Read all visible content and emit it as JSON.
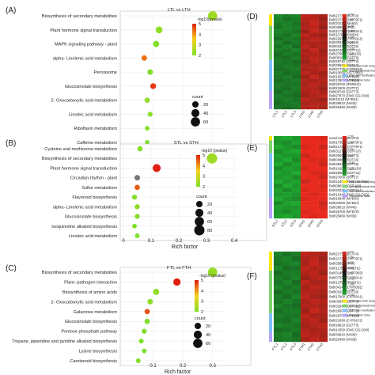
{
  "chart_data": [
    {
      "panel": "(A)",
      "type": "scatter",
      "title": "LTL vs LTH",
      "xlabel": "Rich factor",
      "xticks": [
        "0.1",
        "0.2",
        "0.3"
      ],
      "xlim": [
        0.0,
        0.33
      ],
      "legend_title": "-log10(pvalue)",
      "legend_ticks": [
        "2",
        "3",
        "4",
        "5"
      ],
      "size_title": "count",
      "size_ticks": [
        "20",
        "40",
        "60"
      ],
      "categories": [
        "Biosynthesis of secondary metabolites",
        "Plant hormone signal transduction",
        "MAPK signaling pathway - plant",
        "alpha- Linolenic acid metabolism",
        "Peroxisome",
        "Glucosinolate biosynthesis",
        "2- Oxocarboxylic acid metabolism",
        "Linoleic acid metabolism",
        "Riboflavin metabolism",
        "Caffeine metabolism"
      ],
      "points": [
        {
          "x": 0.3,
          "log10p": 2.4,
          "count": 60
        },
        {
          "x": 0.12,
          "log10p": 2.2,
          "count": 25
        },
        {
          "x": 0.11,
          "log10p": 2.0,
          "count": 18
        },
        {
          "x": 0.07,
          "log10p": 4.3,
          "count": 12
        },
        {
          "x": 0.09,
          "log10p": 2.0,
          "count": 12
        },
        {
          "x": 0.1,
          "log10p": 4.8,
          "count": 14
        },
        {
          "x": 0.08,
          "log10p": 2.2,
          "count": 10
        },
        {
          "x": 0.09,
          "log10p": 2.1,
          "count": 8
        },
        {
          "x": 0.08,
          "log10p": 2.1,
          "count": 6
        },
        {
          "x": 0.08,
          "log10p": 2.0,
          "count": 6
        }
      ]
    },
    {
      "panel": "(B)",
      "type": "scatter",
      "title": "STL vs STH",
      "xlabel": "Rich factor",
      "xticks": [
        "0",
        "0.1",
        "0.2",
        "0.3",
        "0.4"
      ],
      "xlim": [
        0.0,
        0.4
      ],
      "legend_title": "-log10 (pvalue)",
      "legend_ticks": [
        "2",
        "3",
        "4",
        "5"
      ],
      "size_title": "count",
      "size_ticks": [
        "20",
        "40",
        "60",
        "80"
      ],
      "categories": [
        "Cysteine and methionine metabolism",
        "Biosynthesis of secondary metabolites",
        "Plant hormone signal transduction",
        "Circadian rhythm - plant",
        "Sulfur metabolism",
        "Flavonoid biosynthesis",
        "alpha- Linolenic acid metabolism",
        "Glucosinolate biosynthesis",
        "Isoquinoline alkaloid biosynthesis",
        "Linoleic acid metabolism"
      ],
      "points": [
        {
          "x": 0.06,
          "log10p": 2.1,
          "count": 10
        },
        {
          "x": 0.32,
          "log10p": 2.4,
          "count": 80
        },
        {
          "x": 0.12,
          "log10p": 5.0,
          "count": 40
        },
        {
          "x": 0.05,
          "log10p": 1.0,
          "count": 12
        },
        {
          "x": 0.05,
          "log10p": 4.5,
          "count": 10
        },
        {
          "x": 0.04,
          "log10p": 2.0,
          "count": 8
        },
        {
          "x": 0.05,
          "log10p": 2.2,
          "count": 8
        },
        {
          "x": 0.05,
          "log10p": 2.1,
          "count": 8
        },
        {
          "x": 0.04,
          "log10p": 2.0,
          "count": 6
        },
        {
          "x": 0.05,
          "log10p": 2.0,
          "count": 6
        }
      ]
    },
    {
      "panel": "(C)",
      "type": "scatter",
      "title": "FTL vs FTH",
      "xlabel": "Rich factor",
      "xticks": [
        "0.1",
        "0.2",
        "0.3"
      ],
      "xlim": [
        0.0,
        0.33
      ],
      "legend_title": "-log10 (pvalue)",
      "legend_ticks": [
        "2",
        "3",
        "4",
        "5"
      ],
      "size_title": "count",
      "size_ticks": [
        "20",
        "40",
        "60"
      ],
      "categories": [
        "Biosynthesis of secondary metabolites",
        "Plant- pathogen interaction",
        "Biosynthesis of amino acids",
        "2- Oxocarboxylic acid metabolism",
        "Galactose metabolism",
        "Glucosinolate biosynthesis",
        "Pentose phosphate pathway",
        "Tropane, piperidine and pyridine alkaloid biosynthesis",
        "Lysine biosynthesis",
        "Carotenoid biosynthesis"
      ],
      "points": [
        {
          "x": 0.3,
          "log10p": 2.3,
          "count": 60
        },
        {
          "x": 0.18,
          "log10p": 5.0,
          "count": 30
        },
        {
          "x": 0.11,
          "log10p": 2.2,
          "count": 18
        },
        {
          "x": 0.09,
          "log10p": 2.2,
          "count": 12
        },
        {
          "x": 0.08,
          "log10p": 4.6,
          "count": 10
        },
        {
          "x": 0.08,
          "log10p": 2.0,
          "count": 10
        },
        {
          "x": 0.07,
          "log10p": 2.0,
          "count": 8
        },
        {
          "x": 0.06,
          "log10p": 2.0,
          "count": 7
        },
        {
          "x": 0.07,
          "log10p": 2.0,
          "count": 6
        },
        {
          "x": 0.05,
          "log10p": 2.0,
          "count": 6
        }
      ]
    },
    {
      "panel": "(D)",
      "type": "heatmap",
      "columns": [
        "LTL1",
        "LTL2",
        "LTL3",
        "LTH1",
        "LTH2",
        "LTH3"
      ],
      "rows": [
        "Bol021730 (BCAT4)",
        "Bol021736 (CYP79F1)",
        "Bol031012 (MAM2)",
        "Bol035890 (IPMI)",
        "Bol011730 (CYP83A1)",
        "Bol011760 (IPMDH)",
        "Bol022970 (CYP83A1)",
        "Bol039240 (SOT18)",
        "Bol004370 (SOT16)",
        "Bol047450 (GSTF11)",
        "Bol027080 (GSTU20)",
        "Bol008160 (GSTF9)",
        "Bol028740 (GSTT3)",
        "Bol030940 (SOT17)",
        "Bol021730 (CYP81F4)",
        "Bol010500 (UGT74B1)",
        "Bol018230 (MYB28)",
        "Bol013800 (MYB34)",
        "Bol028760 (IPMDH2)",
        "Bol021800 (GSTF2)",
        "Bol008740 (GSTT3)",
        "Bol027870 (FMO GS-OX8)",
        "Bol011110 (MYB51)",
        "Bol039910 (NH40)",
        "Bol025460 (NH39)"
      ],
      "values": [
        [
          -1.6,
          -1.4,
          -1.5,
          1.6,
          1.5,
          1.4
        ],
        [
          -1.5,
          -1.3,
          -1.4,
          1.5,
          1.6,
          1.3
        ],
        [
          -1.4,
          -1.5,
          -1.3,
          1.4,
          1.7,
          1.4
        ],
        [
          -1.3,
          -1.5,
          -1.4,
          1.5,
          1.6,
          1.2
        ],
        [
          -1.5,
          -1.4,
          -1.3,
          1.3,
          1.7,
          1.5
        ],
        [
          -1.4,
          -1.3,
          -1.5,
          1.6,
          1.4,
          1.3
        ],
        [
          -1.2,
          -1.4,
          -1.3,
          1.4,
          1.6,
          1.5
        ],
        [
          -1.5,
          -1.2,
          -1.4,
          1.5,
          1.5,
          1.4
        ],
        [
          -1.3,
          -1.5,
          -1.2,
          1.6,
          1.4,
          1.5
        ],
        [
          -1.4,
          -1.3,
          -1.5,
          1.4,
          1.7,
          1.3
        ],
        [
          -1.2,
          -1.4,
          -1.3,
          1.5,
          1.5,
          1.4
        ],
        [
          -1.3,
          -1.2,
          -1.4,
          1.4,
          1.6,
          1.5
        ],
        [
          -1.4,
          -1.3,
          -1.2,
          1.3,
          1.6,
          1.4
        ],
        [
          -1.3,
          -1.4,
          -1.3,
          1.5,
          1.4,
          1.5
        ],
        [
          -1.2,
          -1.3,
          -1.4,
          1.4,
          1.5,
          1.6
        ],
        [
          -1.4,
          -1.2,
          -1.3,
          1.6,
          1.4,
          1.3
        ],
        [
          -1.3,
          -1.4,
          -1.2,
          1.3,
          1.7,
          1.4
        ],
        [
          -1.2,
          -1.3,
          -1.4,
          1.5,
          1.4,
          1.5
        ],
        [
          -1.4,
          -1.3,
          -1.3,
          1.4,
          1.6,
          1.4
        ],
        [
          -1.3,
          -1.2,
          -1.4,
          1.5,
          1.5,
          1.3
        ],
        [
          -1.2,
          -1.4,
          -1.3,
          1.4,
          1.6,
          1.4
        ],
        [
          -1.4,
          -1.3,
          -1.2,
          1.3,
          1.5,
          1.6
        ],
        [
          -1.3,
          -1.4,
          -1.3,
          1.6,
          1.4,
          1.3
        ],
        [
          -1.2,
          -1.3,
          -1.4,
          1.4,
          1.5,
          1.5
        ],
        [
          -1.3,
          -1.2,
          -1.3,
          1.5,
          1.6,
          1.4
        ]
      ],
      "scale_ticks": [
        "2.00",
        "1.50",
        "1.00",
        "0.50",
        "0.00",
        "-0.50",
        "-1.00",
        "-1.50",
        "-2.00"
      ],
      "legend": [
        {
          "label": "Amino acid chain elongation",
          "color": "#ffe600"
        },
        {
          "label": "Core glucosinolate biosynthesis",
          "color": "#7fd36b"
        },
        {
          "label": "Side chain modification",
          "color": "#7fc1ff"
        },
        {
          "label": "Transcription factor",
          "color": "#b7a2ff"
        }
      ],
      "row_groups": [
        {
          "start": 0,
          "end": 3,
          "color": "#ffe600"
        },
        {
          "start": 3,
          "end": 12,
          "color": "#7fd36b"
        },
        {
          "start": 12,
          "end": 20,
          "color": "#7fc1ff"
        },
        {
          "start": 20,
          "end": 25,
          "color": "#b7a2ff"
        }
      ]
    },
    {
      "panel": "(E)",
      "type": "heatmap",
      "columns": [
        "STL1",
        "STL2",
        "STL3",
        "STH1",
        "STH2",
        "STH3"
      ],
      "rows": [
        "novel.4474 (BCAT3)",
        "Bol017360 (CYP79F1)",
        "Bol021736 (CYP79F1)",
        "Bol031270 (GSTF10)",
        "Bol035040 (GSTT3)",
        "Bol004860 (SOT16)",
        "Bol039240 (SOT18)",
        "Bol014100 (GSTU20)",
        "Bol025050 (GSTF11)",
        "Bol027000 (SOT17)",
        "Bol022400 (FMO GS-OX2)",
        "Bol008830 (GSTU20)",
        "Bol020330 (CYP83A1)",
        "Bol012440 (FMO GS-OX3)",
        "Bol010640 (MYB34)",
        "Bol034050 (MYB51)",
        "Bol039910 (NH40)",
        "Bol028700 (MYB76)",
        "Bol025460 (NH39)"
      ],
      "values": [
        [
          -1.4,
          -1.5,
          -1.3,
          1.5,
          1.6,
          1.4
        ],
        [
          -1.3,
          -1.2,
          -1.4,
          1.6,
          1.5,
          1.5
        ],
        [
          -1.5,
          -1.3,
          -1.2,
          1.4,
          1.7,
          1.3
        ],
        [
          -1.2,
          -1.4,
          -1.5,
          1.5,
          1.5,
          1.6
        ],
        [
          -1.4,
          -1.3,
          -1.3,
          1.3,
          1.6,
          1.5
        ],
        [
          -1.3,
          -1.5,
          -1.2,
          1.6,
          1.4,
          1.4
        ],
        [
          -1.5,
          -1.2,
          -1.4,
          1.5,
          1.5,
          1.3
        ],
        [
          -1.2,
          -1.4,
          -1.3,
          1.4,
          1.6,
          1.5
        ],
        [
          -1.4,
          -1.3,
          -1.5,
          1.5,
          1.4,
          1.4
        ],
        [
          -1.3,
          -1.4,
          -1.2,
          1.6,
          1.5,
          1.3
        ],
        [
          -1.5,
          -1.3,
          -1.4,
          1.3,
          1.6,
          1.5
        ],
        [
          -1.2,
          -1.5,
          -1.3,
          1.5,
          1.5,
          1.4
        ],
        [
          -1.4,
          -1.2,
          -1.4,
          1.4,
          1.6,
          1.5
        ],
        [
          -1.3,
          -1.4,
          -1.3,
          1.5,
          1.4,
          1.6
        ],
        [
          -1.5,
          -1.3,
          -1.2,
          1.4,
          1.5,
          1.5
        ],
        [
          -1.2,
          -1.4,
          -1.5,
          1.6,
          1.5,
          1.3
        ],
        [
          -1.4,
          -1.3,
          -1.3,
          1.5,
          1.6,
          1.4
        ],
        [
          -1.3,
          -1.2,
          -1.4,
          1.4,
          1.5,
          1.6
        ],
        [
          -1.4,
          -1.5,
          -1.3,
          1.5,
          1.4,
          1.5
        ]
      ],
      "scale_ticks": [
        "1.50",
        "1.00",
        "0.50",
        "0.00",
        "-0.50",
        "-1.00",
        "-1.50"
      ],
      "legend": [
        {
          "label": "Amino acid chain elongation",
          "color": "#ffe600"
        },
        {
          "label": "Core glucosinolate biosynthesis",
          "color": "#7fd36b"
        },
        {
          "label": "Side chain modification",
          "color": "#7fc1ff"
        },
        {
          "label": "Transcription factor",
          "color": "#b7a2ff"
        }
      ],
      "row_groups": [
        {
          "start": 0,
          "end": 1,
          "color": "#ffe600"
        },
        {
          "start": 1,
          "end": 4,
          "color": "#7fd36b"
        },
        {
          "start": 4,
          "end": 14,
          "color": "#7fc1ff"
        },
        {
          "start": 14,
          "end": 19,
          "color": "#b7a2ff"
        }
      ]
    },
    {
      "panel": "(F)",
      "type": "heatmap",
      "columns": [
        "FTL1",
        "FTL2",
        "FTL3",
        "FTH1",
        "FTH2",
        "FTH3"
      ],
      "rows": [
        "Bol021730 (BCAT4)",
        "Bol021736 (CYP79F1)",
        "Bol035890 (IPMI)",
        "Bol011750 (IPMDH1)",
        "Bol031450 (CYP79B3)",
        "Bol007330 (CYP83A1)",
        "Bol013790 (IPMDH1)",
        "Bol034140 (CYP83B1)",
        "Bol003290 (SOT16)",
        "Bol017900 (CYP83A1)",
        "Bol006940 (GSTF9)",
        "Bol032940 (GSTF11)",
        "Bol026690 (GSTT3)",
        "Bol028700 (MYB28)",
        "Bol021800 (CYP81F2)",
        "Bol026810 (GSTT3)",
        "Bol014350 (FMO GS-OX8)",
        "Bol039910 (NH40)",
        "Bol025460 (NH39)"
      ],
      "values": [
        [
          -1.5,
          -1.3,
          -1.4,
          1.6,
          1.5,
          1.4
        ],
        [
          -1.4,
          -1.5,
          -1.2,
          1.5,
          1.6,
          1.3
        ],
        [
          -1.3,
          -1.4,
          -1.5,
          1.4,
          1.7,
          1.4
        ],
        [
          -1.5,
          -1.2,
          -1.3,
          1.6,
          1.5,
          1.5
        ],
        [
          -1.2,
          -1.4,
          -1.4,
          1.5,
          1.6,
          1.3
        ],
        [
          -1.4,
          -1.3,
          -1.5,
          1.3,
          1.5,
          1.6
        ],
        [
          -1.3,
          -1.5,
          -1.2,
          1.6,
          1.4,
          1.4
        ],
        [
          -1.5,
          -1.3,
          -1.4,
          1.4,
          1.6,
          1.5
        ],
        [
          -1.2,
          -1.4,
          -1.3,
          1.5,
          1.5,
          1.4
        ],
        [
          -1.4,
          -1.2,
          -1.5,
          1.6,
          1.4,
          1.3
        ],
        [
          -1.3,
          -1.5,
          -1.3,
          1.4,
          1.6,
          1.5
        ],
        [
          -1.5,
          -1.3,
          -1.2,
          1.5,
          1.5,
          1.4
        ],
        [
          -1.2,
          -1.4,
          -1.4,
          1.3,
          1.7,
          1.5
        ],
        [
          -1.4,
          -1.3,
          -1.3,
          1.6,
          1.4,
          1.4
        ],
        [
          -1.3,
          -1.2,
          -1.5,
          1.5,
          1.6,
          1.3
        ],
        [
          -1.5,
          -1.4,
          -1.3,
          1.4,
          1.5,
          1.6
        ],
        [
          -1.2,
          -1.3,
          -1.4,
          1.5,
          1.4,
          1.5
        ],
        [
          -1.4,
          -1.5,
          -1.2,
          1.6,
          1.5,
          1.4
        ],
        [
          -1.3,
          -1.4,
          -1.3,
          1.4,
          1.6,
          1.5
        ]
      ],
      "scale_ticks": [
        "2.00",
        "1.50",
        "1.00",
        "0.50",
        "0.00",
        "-0.50",
        "-1.00",
        "-1.50",
        "-2.00"
      ],
      "legend": [
        {
          "label": "Amino acid chain elongation",
          "color": "#ffe600"
        },
        {
          "label": "Core glucosinolate biosynthesis",
          "color": "#7fd36b"
        },
        {
          "label": "Side chain modification",
          "color": "#7fc1ff"
        },
        {
          "label": "Transcription factor",
          "color": "#b7a2ff"
        }
      ],
      "row_groups": [
        {
          "start": 0,
          "end": 4,
          "color": "#ffe600"
        },
        {
          "start": 4,
          "end": 13,
          "color": "#7fd36b"
        },
        {
          "start": 13,
          "end": 17,
          "color": "#7fc1ff"
        },
        {
          "start": 17,
          "end": 19,
          "color": "#b7a2ff"
        }
      ]
    }
  ],
  "colors": {
    "bubble_low": "#7fe02a",
    "bubble_mid": "#f7d11a",
    "bubble_high": "#e02010",
    "bubble_na": "#777777",
    "heat_low": "#1faa2f",
    "heat_mid": "#111111",
    "heat_high": "#e82a1e"
  }
}
